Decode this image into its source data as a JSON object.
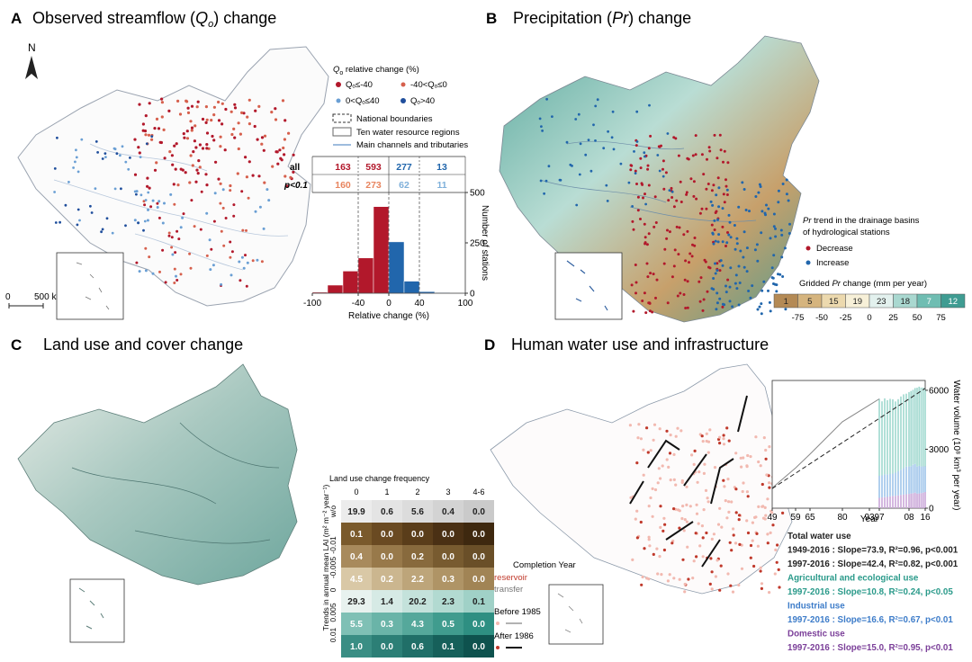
{
  "panelA": {
    "letter": "A",
    "title_pre": "Observed streamflow (",
    "title_sym": "Q",
    "title_sub": "o",
    "title_post": ") change",
    "north": "N",
    "scale": {
      "zero": "0",
      "label": "500 km"
    },
    "legend": {
      "title_sym": "Q",
      "title_sub": "o",
      "title_rest": " relative change (%)",
      "items": [
        {
          "label": "Qₒ≤-40",
          "color": "#b2182b"
        },
        {
          "label": "-40<Qₒ≤0",
          "color": "#d6604d"
        },
        {
          "label": "0<Qₒ≤40",
          "color": "#6a9fd4"
        },
        {
          "label": "Qₒ>40",
          "color": "#1f4e9c"
        }
      ],
      "lines": [
        "National boundaries",
        "Ten water resource regions",
        "Main channels and tributaries"
      ]
    }
  },
  "panelB": {
    "letter": "B",
    "title_pre": "Precipitation (",
    "title_sym": "Pr",
    "title_post": ") change",
    "legend_title_sym": "Pr",
    "legend_title_rest": " trend in the drainage basins",
    "legend_title2": "of hydrological stations",
    "items": [
      {
        "label": "Decrease",
        "color": "#b2182b"
      },
      {
        "label": "Increase",
        "color": "#2166ac"
      }
    ],
    "grid_title_pre": "Gridded ",
    "grid_title_sym": "Pr",
    "grid_title_post": " change (mm per year)",
    "colorbar": {
      "values": [
        "1",
        "5",
        "15",
        "19",
        "23",
        "18",
        "7",
        "12"
      ],
      "colors": [
        "#b48a55",
        "#d5b47e",
        "#ecd9ae",
        "#f7f0d8",
        "#e3f1ee",
        "#a9d8d0",
        "#6fbdb2",
        "#3f9c92"
      ],
      "ticks": [
        "-75",
        "-50",
        "-25",
        "0",
        "25",
        "50",
        "75"
      ]
    }
  },
  "panelC": {
    "letter": "C",
    "title": "Land use and cover change"
  },
  "panelD": {
    "letter": "D",
    "title": "Human water use and infrastructure",
    "legend": {
      "title": "Completion Year",
      "reservoir": "reservoir",
      "transfer": "transfer",
      "before": "Before 1985",
      "after": "After 1986"
    },
    "stats": [
      {
        "text": "Total water use",
        "color": "#222222"
      },
      {
        "text": "1949-2016 : Slope=73.9, R²=0.96, p<0.001",
        "color": "#222222"
      },
      {
        "text": "1997-2016 : Slope=42.4, R²=0.82, p<0.001",
        "color": "#222222"
      },
      {
        "text": "Agricultural and ecological use",
        "color": "#2a9a8a"
      },
      {
        "text": "1997-2016 : Slope=10.8, R²=0.24, p<0.05",
        "color": "#2a9a8a"
      },
      {
        "text": "Industrial use",
        "color": "#3d7cc9"
      },
      {
        "text": "1997-2016 : Slope=16.6, R²=0.67, p<0.01",
        "color": "#3d7cc9"
      },
      {
        "text": "Domestic use",
        "color": "#7b3f99"
      },
      {
        "text": "1997-2016 : Slope=15.0, R²=0.95, p<0.01",
        "color": "#7b3f99"
      }
    ]
  },
  "chart_data": [
    {
      "type": "table",
      "id": "counts",
      "row_labels": [
        "all",
        "p<0.1"
      ],
      "rows": [
        [
          163,
          593,
          277,
          13
        ],
        [
          160,
          273,
          62,
          11
        ]
      ],
      "row_colors": [
        [
          "#b2182b",
          "#b2182b",
          "#2166ac",
          "#2166ac"
        ],
        [
          "#e8855f",
          "#e8855f",
          "#7fb0da",
          "#7fb0da"
        ]
      ]
    },
    {
      "type": "bar",
      "id": "histogram",
      "xlabel": "Relative change (%)",
      "ylabel": "Number of stations",
      "xlim": [
        -100,
        100
      ],
      "ylim": [
        0,
        500
      ],
      "xticks": [
        "-100",
        "-40",
        "0",
        "40",
        "100"
      ],
      "yticks": [
        "0",
        "250",
        "500"
      ],
      "bins": [
        {
          "x0": -100,
          "x1": -80,
          "value": 5,
          "color": "#b2182b"
        },
        {
          "x0": -80,
          "x1": -60,
          "value": 40,
          "color": "#b2182b"
        },
        {
          "x0": -60,
          "x1": -40,
          "value": 110,
          "color": "#b2182b"
        },
        {
          "x0": -40,
          "x1": -20,
          "value": 175,
          "color": "#b2182b"
        },
        {
          "x0": -20,
          "x1": 0,
          "value": 430,
          "color": "#b2182b"
        },
        {
          "x0": 0,
          "x1": 20,
          "value": 255,
          "color": "#2166ac"
        },
        {
          "x0": 20,
          "x1": 40,
          "value": 60,
          "color": "#2166ac"
        },
        {
          "x0": 40,
          "x1": 60,
          "value": 8,
          "color": "#2166ac"
        },
        {
          "x0": 60,
          "x1": 80,
          "value": 3,
          "color": "#2166ac"
        }
      ]
    },
    {
      "type": "heatmap",
      "id": "landuse",
      "title": "Land use change frequency",
      "columns": [
        "0",
        "1",
        "2",
        "3",
        "4-6"
      ],
      "row_labels": [
        "w/o",
        "-0.01",
        "-0.005",
        "0",
        "0.005",
        "0.01"
      ],
      "ylabel": "Trends in annual mean LAI (m² m⁻² year⁻¹)",
      "values": [
        [
          "19.9",
          "0.6",
          "5.6",
          "0.4",
          "0.0"
        ],
        [
          "0.1",
          "0.0",
          "0.0",
          "0.0",
          "0.0"
        ],
        [
          "0.4",
          "0.0",
          "0.2",
          "0.0",
          "0.0"
        ],
        [
          "4.5",
          "0.2",
          "2.2",
          "0.3",
          "0.0"
        ],
        [
          "29.3",
          "1.4",
          "20.2",
          "2.3",
          "0.1"
        ],
        [
          "5.5",
          "0.3",
          "4.3",
          "0.5",
          "0.0"
        ],
        [
          "1.0",
          "0.0",
          "0.6",
          "0.1",
          "0.0"
        ]
      ],
      "row_colors": [
        [
          "#ececec",
          "#e4e4e4",
          "#dcdcdc",
          "#d3d3d3",
          "#cacaca"
        ],
        [
          "#7a5a2c",
          "#6a4a22",
          "#5a3d1a",
          "#4a3014",
          "#3e280f"
        ],
        [
          "#a88a5c",
          "#98794a",
          "#886a3d",
          "#785b30",
          "#6a4f28"
        ],
        [
          "#d9c8a6",
          "#cbb68f",
          "#bda57a",
          "#af9466",
          "#a18455"
        ],
        [
          "#e8f2ef",
          "#d6eae5",
          "#c4e2db",
          "#b2dad1",
          "#a0d1c7"
        ],
        [
          "#7fc0b5",
          "#6ab4a8",
          "#55a89b",
          "#409c8e",
          "#2e8f82"
        ],
        [
          "#3a8e84",
          "#2c7f76",
          "#206f68",
          "#16605a",
          "#0e524e"
        ]
      ]
    },
    {
      "type": "bar",
      "id": "water_use",
      "xlabel": "Year",
      "ylabel": "Water volume (10⁸ km³ per year)",
      "ylim": [
        0,
        6500
      ],
      "yticks": [
        "0",
        "3000",
        "6000"
      ],
      "xticks": [
        "49",
        "59",
        "65",
        "80",
        "93",
        "97",
        "08",
        "16"
      ],
      "total_line": {
        "x": [
          1949,
          1959,
          1965,
          1980,
          1993,
          1997
        ],
        "y": [
          1030,
          2050,
          2750,
          4400,
          5250,
          5560
        ]
      },
      "trend_line": {
        "x": [
          1949,
          2016
        ],
        "y": [
          1000,
          6100
        ]
      },
      "stack_years": [
        1997,
        1998,
        1999,
        2000,
        2001,
        2002,
        2003,
        2004,
        2005,
        2006,
        2007,
        2008,
        2009,
        2010,
        2011,
        2012,
        2013,
        2014,
        2015,
        2016
      ],
      "series": [
        {
          "name": "Domestic use",
          "color": "#c9a6d8",
          "values": [
            525,
            545,
            560,
            575,
            600,
            620,
            630,
            650,
            675,
            693,
            710,
            729,
            748,
            765,
            790,
            740,
            750,
            767,
            793,
            822
          ]
        },
        {
          "name": "Industrial use",
          "color": "#9ec4ea",
          "values": [
            1121,
            1126,
            1159,
            1139,
            1142,
            1142,
            1177,
            1229,
            1285,
            1344,
            1404,
            1397,
            1391,
            1447,
            1462,
            1380,
            1406,
            1356,
            1335,
            1308
          ]
        },
        {
          "name": "Agricultural and ecological use",
          "color": "#9fd8cf",
          "values": [
            3920,
            3766,
            3869,
            3784,
            3825,
            3783,
            3625,
            3669,
            3725,
            3758,
            3713,
            3784,
            3826,
            3810,
            3862,
            4011,
            4027,
            4014,
            4011,
            3910
          ]
        }
      ]
    }
  ]
}
